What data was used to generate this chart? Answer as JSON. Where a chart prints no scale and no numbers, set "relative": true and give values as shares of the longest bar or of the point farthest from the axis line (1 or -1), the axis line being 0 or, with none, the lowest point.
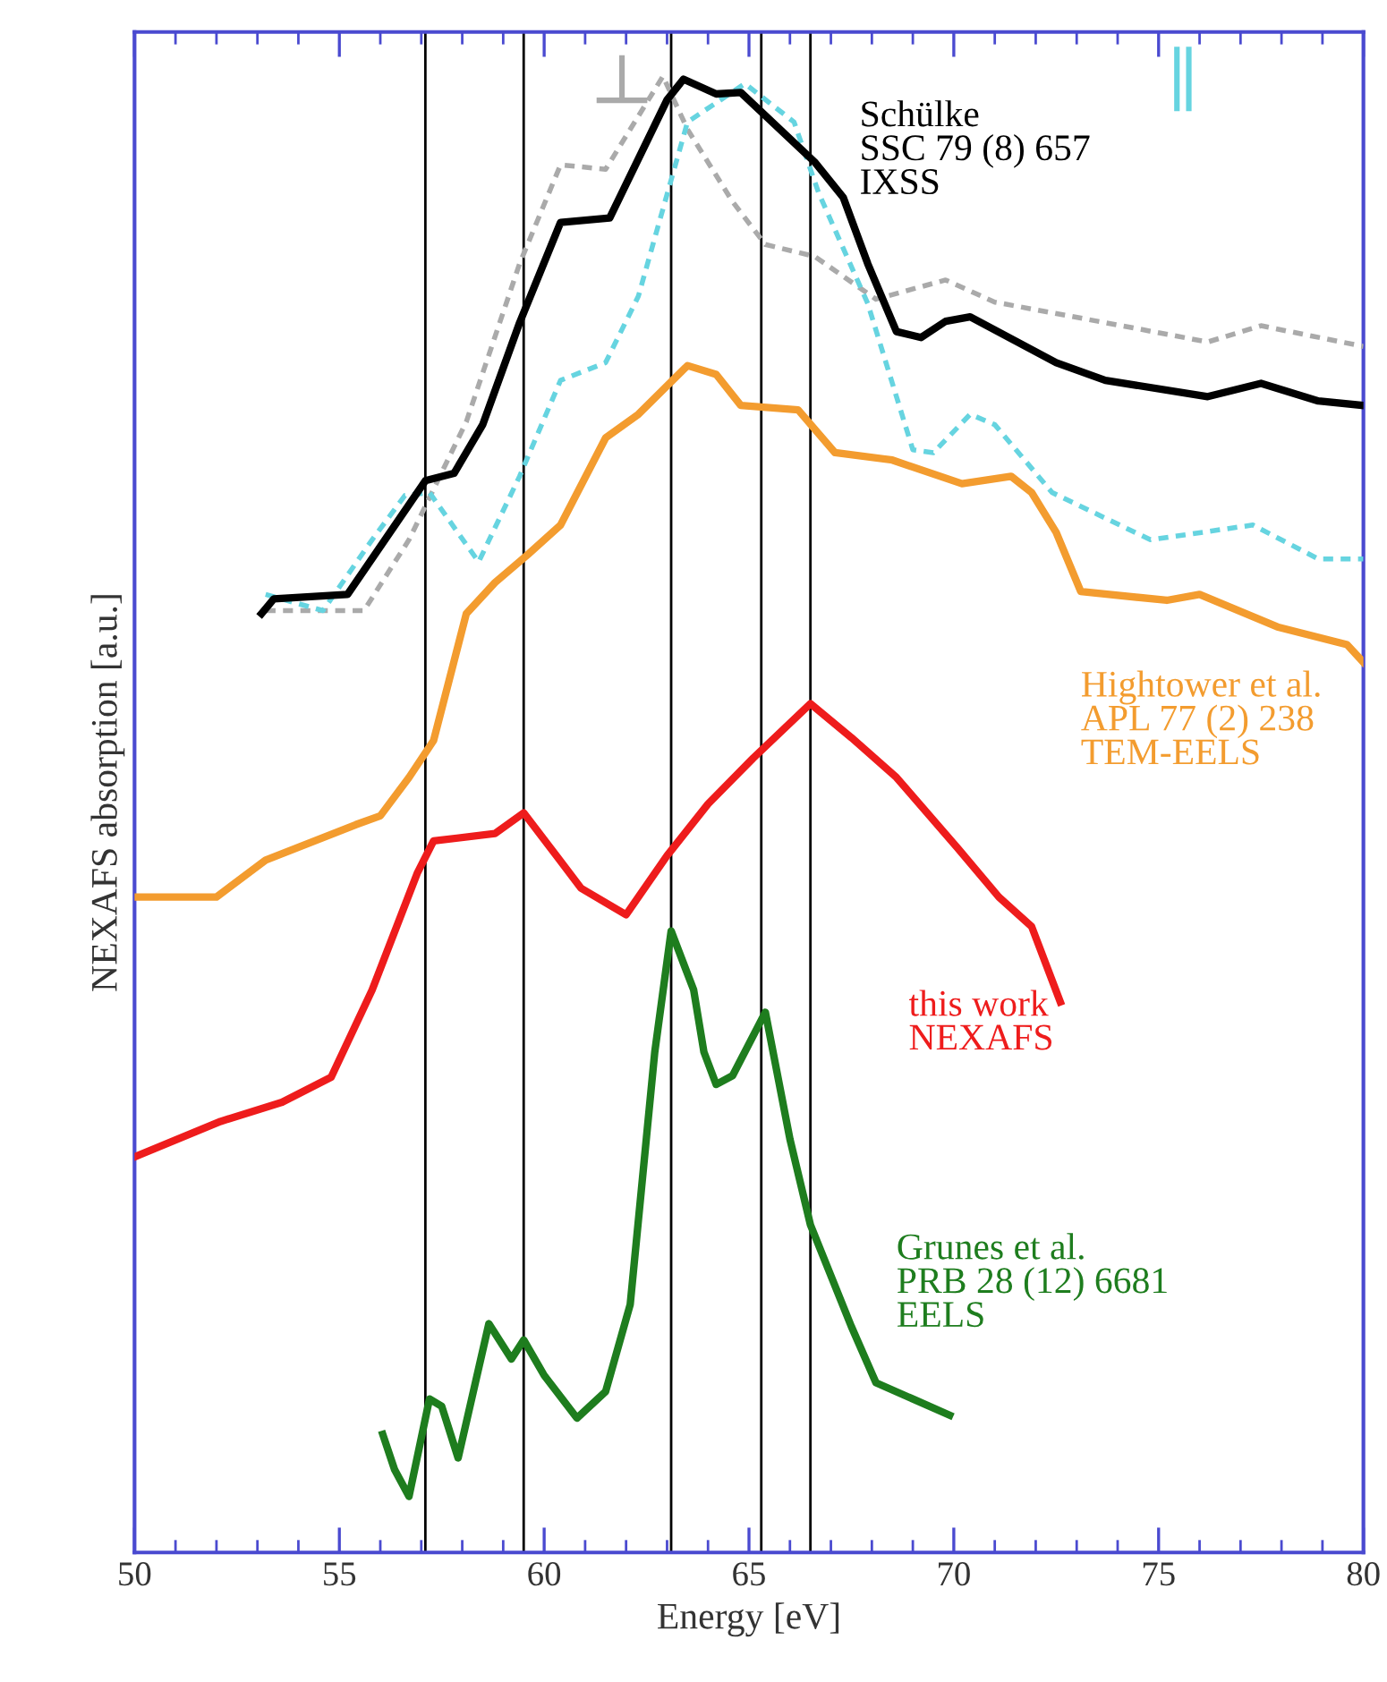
{
  "chart_data": {
    "type": "line",
    "relative": true,
    "xlabel": "Energy [eV]",
    "ylabel": "NEXAFS absorption [a.u.]",
    "xlim": [
      50,
      80
    ],
    "xticks": [
      50,
      55,
      60,
      65,
      70,
      75,
      80
    ],
    "grid": false,
    "legend": false,
    "marker": "none",
    "ref_lines": [
      {
        "axis": "x",
        "value": 57.1,
        "color": "#000000"
      },
      {
        "axis": "x",
        "value": 59.5,
        "color": "#000000"
      },
      {
        "axis": "x",
        "value": 63.1,
        "color": "#000000"
      },
      {
        "axis": "x",
        "value": 65.3,
        "color": "#000000"
      },
      {
        "axis": "x",
        "value": 66.5,
        "color": "#000000"
      }
    ],
    "series": [
      {
        "name": "⊥",
        "color": "#aaaaaa",
        "line_style": "dashed",
        "x": [
          53.2,
          55.6,
          56.7,
          58.1,
          59.4,
          60.4,
          61.5,
          62.9,
          63.5,
          64.6,
          65.4,
          66.6,
          68.1,
          69.8,
          71.0,
          74.1,
          76.2,
          77.5,
          80
        ],
        "values": [
          0.638,
          0.638,
          0.686,
          0.766,
          0.873,
          0.94,
          0.937,
          1.0,
          0.964,
          0.915,
          0.886,
          0.878,
          0.849,
          0.862,
          0.847,
          0.831,
          0.82,
          0.831,
          0.817
        ]
      },
      {
        "name": "∥",
        "color": "#66d4e0",
        "line_style": "dashed",
        "x": [
          53.2,
          54.6,
          55.8,
          56.6,
          57.2,
          58.4,
          59.4,
          60.4,
          61.5,
          62.3,
          63.0,
          63.5,
          64.9,
          66.1,
          66.7,
          67.9,
          69.0,
          69.5,
          70.4,
          71.0,
          72.4,
          74.8,
          77.3,
          78.9,
          80
        ],
        "values": [
          0.649,
          0.638,
          0.686,
          0.716,
          0.718,
          0.671,
          0.729,
          0.794,
          0.806,
          0.851,
          0.92,
          0.969,
          0.995,
          0.969,
          0.921,
          0.846,
          0.747,
          0.745,
          0.771,
          0.764,
          0.718,
          0.686,
          0.696,
          0.673,
          0.673
        ]
      },
      {
        "name": "Schülke\nSSC 79 (8) 657\nIXSS",
        "color": "#000000",
        "line_style": "solid",
        "x": [
          53.1,
          53.4,
          55.2,
          57.1,
          57.8,
          58.5,
          59.4,
          60.4,
          61.6,
          63.0,
          63.4,
          64.2,
          64.8,
          66.6,
          67.3,
          67.9,
          68.6,
          69.2,
          69.8,
          70.4,
          72.5,
          73.7,
          76.2,
          77.5,
          78.9,
          80
        ],
        "values": [
          0.636,
          0.646,
          0.649,
          0.726,
          0.731,
          0.764,
          0.833,
          0.901,
          0.904,
          0.984,
          0.998,
          0.988,
          0.989,
          0.942,
          0.918,
          0.873,
          0.827,
          0.823,
          0.834,
          0.837,
          0.806,
          0.794,
          0.783,
          0.792,
          0.78,
          0.777
        ]
      },
      {
        "name": "Hightower et al.\nAPL 77 (2) 238\nTEM-EELS",
        "color": "#f39c2f",
        "line_style": "solid",
        "x": [
          50,
          52,
          53.2,
          55.4,
          56,
          56.7,
          57.3,
          58.1,
          58.8,
          59.6,
          60.4,
          61.5,
          62.3,
          63.5,
          64.2,
          64.8,
          66.2,
          67.1,
          68.5,
          70.2,
          71.4,
          71.9,
          72.5,
          73.1,
          75.2,
          76,
          77.9,
          79.6,
          80
        ],
        "values": [
          0.444,
          0.444,
          0.469,
          0.493,
          0.499,
          0.525,
          0.55,
          0.636,
          0.657,
          0.676,
          0.696,
          0.755,
          0.771,
          0.804,
          0.798,
          0.777,
          0.774,
          0.745,
          0.74,
          0.724,
          0.729,
          0.718,
          0.691,
          0.651,
          0.645,
          0.649,
          0.627,
          0.615,
          0.603
        ]
      },
      {
        "name": "this work\nNEXAFS",
        "color": "#ee1c1c",
        "line_style": "solid",
        "x": [
          50,
          52.1,
          53.6,
          54.8,
          55.8,
          56.9,
          57.3,
          58.8,
          59.5,
          60.3,
          60.9,
          62.0,
          63.0,
          64.0,
          65.1,
          66.5,
          67.5,
          68.6,
          70.1,
          71.1,
          71.9,
          72.6
        ],
        "values": [
          0.268,
          0.292,
          0.305,
          0.322,
          0.381,
          0.46,
          0.482,
          0.487,
          0.501,
          0.472,
          0.45,
          0.432,
          0.472,
          0.507,
          0.538,
          0.575,
          0.552,
          0.525,
          0.477,
          0.444,
          0.424,
          0.373
        ]
      },
      {
        "name": "Grunes et al.\nPRB 28 (12) 6681\nEELS",
        "color": "#1e7d1e",
        "line_style": "solid",
        "x": [
          56.06,
          56.35,
          56.7,
          57.2,
          57.5,
          57.9,
          58.65,
          59.2,
          59.5,
          60.0,
          60.8,
          61.5,
          62.1,
          62.7,
          63.1,
          63.65,
          63.9,
          64.2,
          64.6,
          65.4,
          66.0,
          66.5,
          67.5,
          68.1,
          69.0,
          69.9
        ],
        "values": [
          0.08,
          0.056,
          0.038,
          0.104,
          0.099,
          0.064,
          0.155,
          0.131,
          0.144,
          0.12,
          0.091,
          0.109,
          0.168,
          0.339,
          0.421,
          0.381,
          0.339,
          0.317,
          0.323,
          0.366,
          0.28,
          0.222,
          0.153,
          0.115,
          0.104,
          0.093
        ]
      }
    ]
  }
}
